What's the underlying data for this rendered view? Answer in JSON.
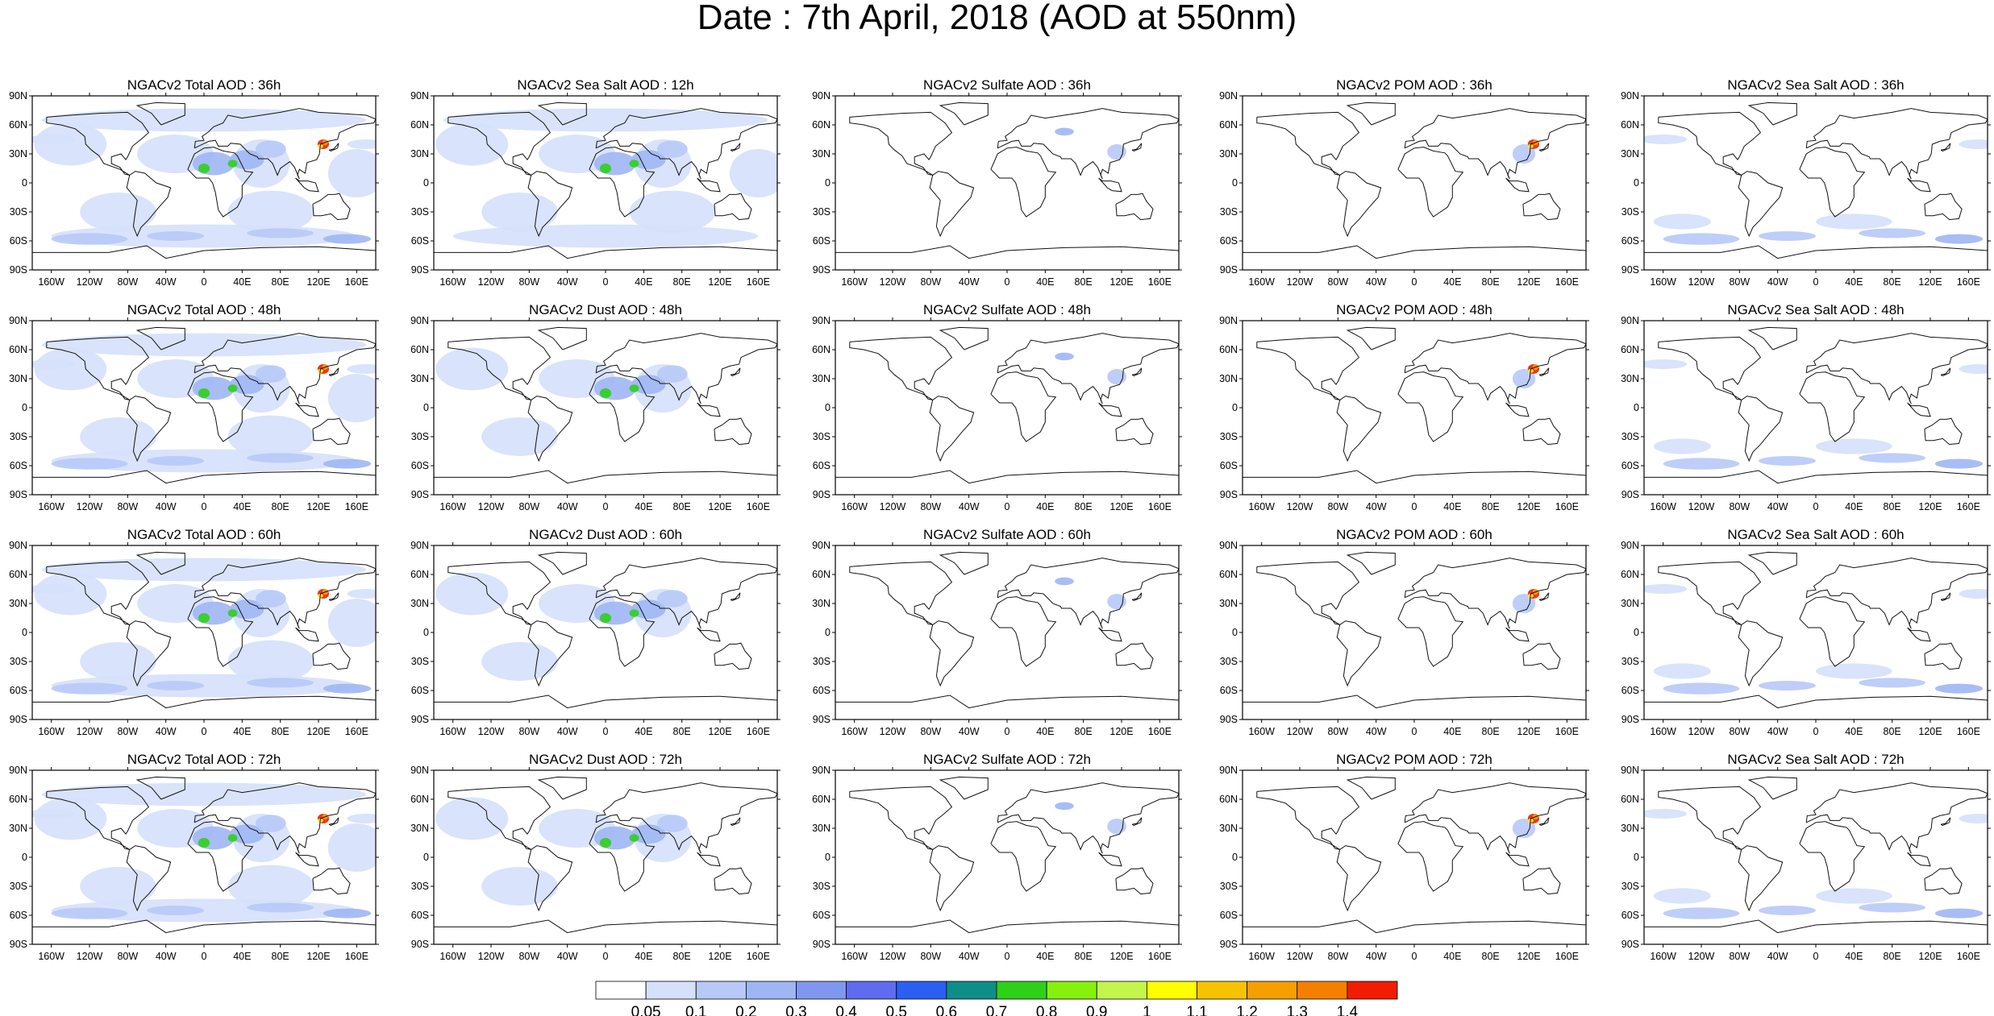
{
  "title": "Date : 7th April, 2018 (AOD at 550nm)",
  "lat_labels": [
    "90N",
    "60N",
    "30N",
    "0",
    "30S",
    "60S",
    "90S"
  ],
  "lon_labels": [
    "160W",
    "120W",
    "80W",
    "40W",
    "0",
    "40E",
    "80E",
    "120E",
    "160E"
  ],
  "panels": [
    [
      "NGACv2 Total AOD : 36h",
      "NGACv2 Sea Salt  AOD : 12h",
      "NGACv2 Sulfate AOD : 36h",
      "NGACv2 POM AOD : 36h",
      "NGACv2 Sea Salt  AOD : 36h"
    ],
    [
      "NGACv2 Total AOD : 48h",
      "NGACv2 Dust AOD : 48h",
      "NGACv2 Sulfate AOD : 48h",
      "NGACv2 POM AOD : 48h",
      "NGACv2 Sea Salt  AOD : 48h"
    ],
    [
      "NGACv2 Total AOD : 60h",
      "NGACv2 Dust AOD : 60h",
      "NGACv2 Sulfate AOD : 60h",
      "NGACv2 POM AOD : 60h",
      "NGACv2 Sea Salt  AOD : 60h"
    ],
    [
      "NGACv2 Total AOD : 72h",
      "NGACv2 Dust AOD : 72h",
      "NGACv2 Sulfate AOD : 72h",
      "NGACv2 POM AOD : 72h",
      "NGACv2 Sea Salt  AOD : 72h"
    ]
  ],
  "colorbar": {
    "labels": [
      "0.05",
      "0.1",
      "0.2",
      "0.3",
      "0.4",
      "0.5",
      "0.6",
      "0.7",
      "0.8",
      "0.9",
      "1",
      "1.1",
      "1.2",
      "1.3",
      "1.4"
    ],
    "colors": [
      "#ffffff",
      "#d5e0fb",
      "#b7c9f7",
      "#9fb6f4",
      "#8097f1",
      "#5f6cf0",
      "#2a5ff2",
      "#0f8e88",
      "#2fd018",
      "#86f10d",
      "#c3f54d",
      "#ffff00",
      "#f7c300",
      "#f59f00",
      "#f57f00",
      "#f21c00"
    ]
  }
}
